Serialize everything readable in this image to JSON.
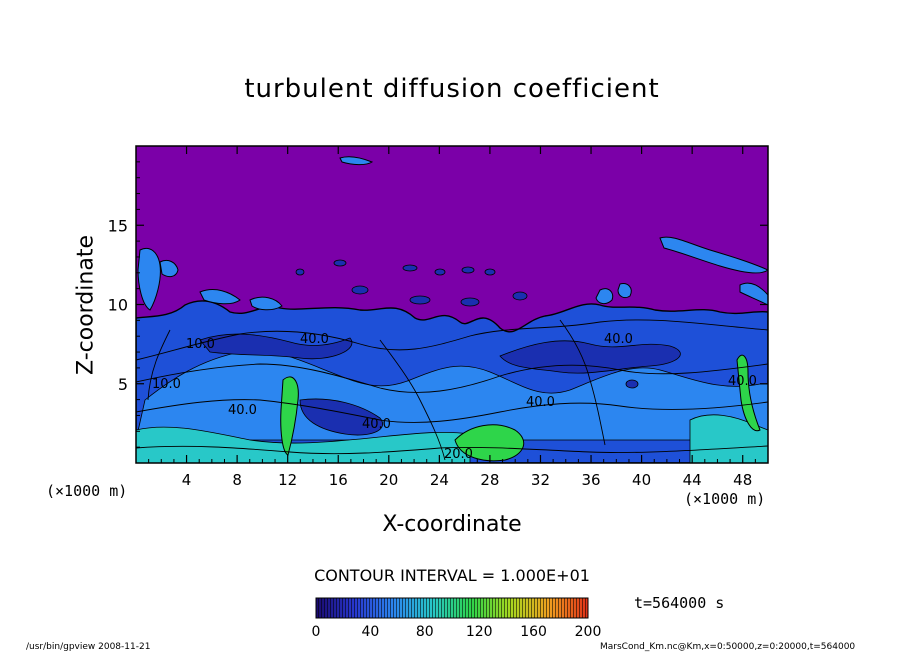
{
  "chart_data": {
    "type": "heatmap",
    "title": "turbulent diffusion coefficient",
    "xlabel": "X-coordinate",
    "ylabel": "Z-coordinate",
    "x_unit": "(×1000 m)",
    "x_ticks": [
      4,
      8,
      12,
      16,
      20,
      24,
      28,
      32,
      36,
      40,
      44,
      48
    ],
    "y_ticks": [
      5,
      10,
      15
    ],
    "xlim": [
      0,
      50
    ],
    "ylim": [
      0,
      20
    ],
    "colorbar": {
      "ticks": [
        0,
        40,
        80,
        120,
        160,
        200
      ],
      "range": [
        0,
        200
      ],
      "colors": [
        "#1a0a6e",
        "#2838d0",
        "#2c86f0",
        "#28c8c8",
        "#2ed54a",
        "#a8d820",
        "#f0a020",
        "#e03018"
      ]
    },
    "background_value_color": "#7b00a8",
    "contour_interval": "CONTOUR INTERVAL = 1.000E+01",
    "time_label": "t=564000 s",
    "contour_labels": [
      "40.0",
      "40.0",
      "40.0",
      "40.0",
      "20.0",
      "10.0",
      "40.0",
      "10.0",
      "40.0"
    ]
  },
  "footer": {
    "left": "/usr/bin/gpview  2008-11-21",
    "right": "MarsCond_Km.nc@Km,x=0:50000,z=0:20000,t=564000"
  }
}
